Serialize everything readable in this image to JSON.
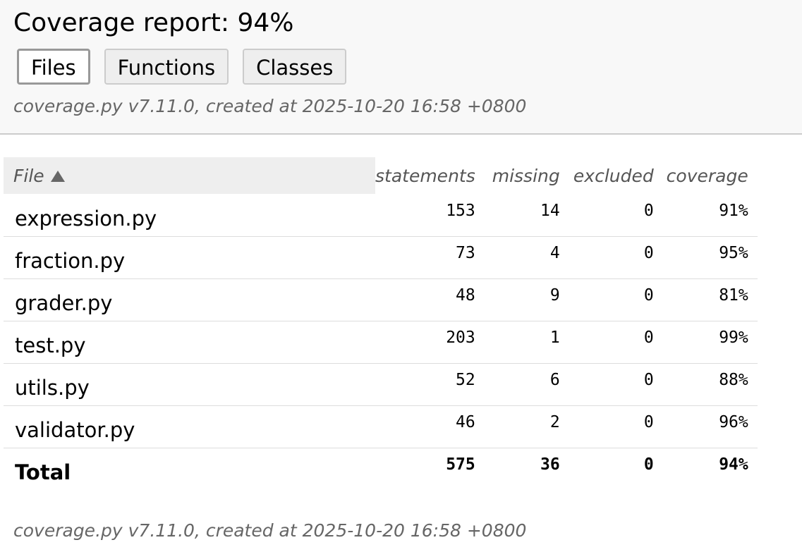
{
  "header": {
    "title": "Coverage report: 94%",
    "tabs": [
      "Files",
      "Functions",
      "Classes"
    ],
    "meta": "coverage.py v7.11.0, created at 2025-10-20 16:58 +0800"
  },
  "table": {
    "columns": [
      "File",
      "statements",
      "missing",
      "excluded",
      "coverage"
    ],
    "rows": [
      [
        "expression.py",
        153,
        14,
        0,
        "91%"
      ],
      [
        "fraction.py",
        73,
        4,
        0,
        "95%"
      ],
      [
        "grader.py",
        48,
        9,
        0,
        "81%"
      ],
      [
        "test.py",
        203,
        1,
        0,
        "99%"
      ],
      [
        "utils.py",
        52,
        6,
        0,
        "88%"
      ],
      [
        "validator.py",
        46,
        2,
        0,
        "96%"
      ]
    ],
    "total": [
      "Total",
      575,
      36,
      0,
      "94%"
    ]
  },
  "footer": {
    "meta": "coverage.py v7.11.0, created at 2025-10-20 16:58 +0800"
  }
}
